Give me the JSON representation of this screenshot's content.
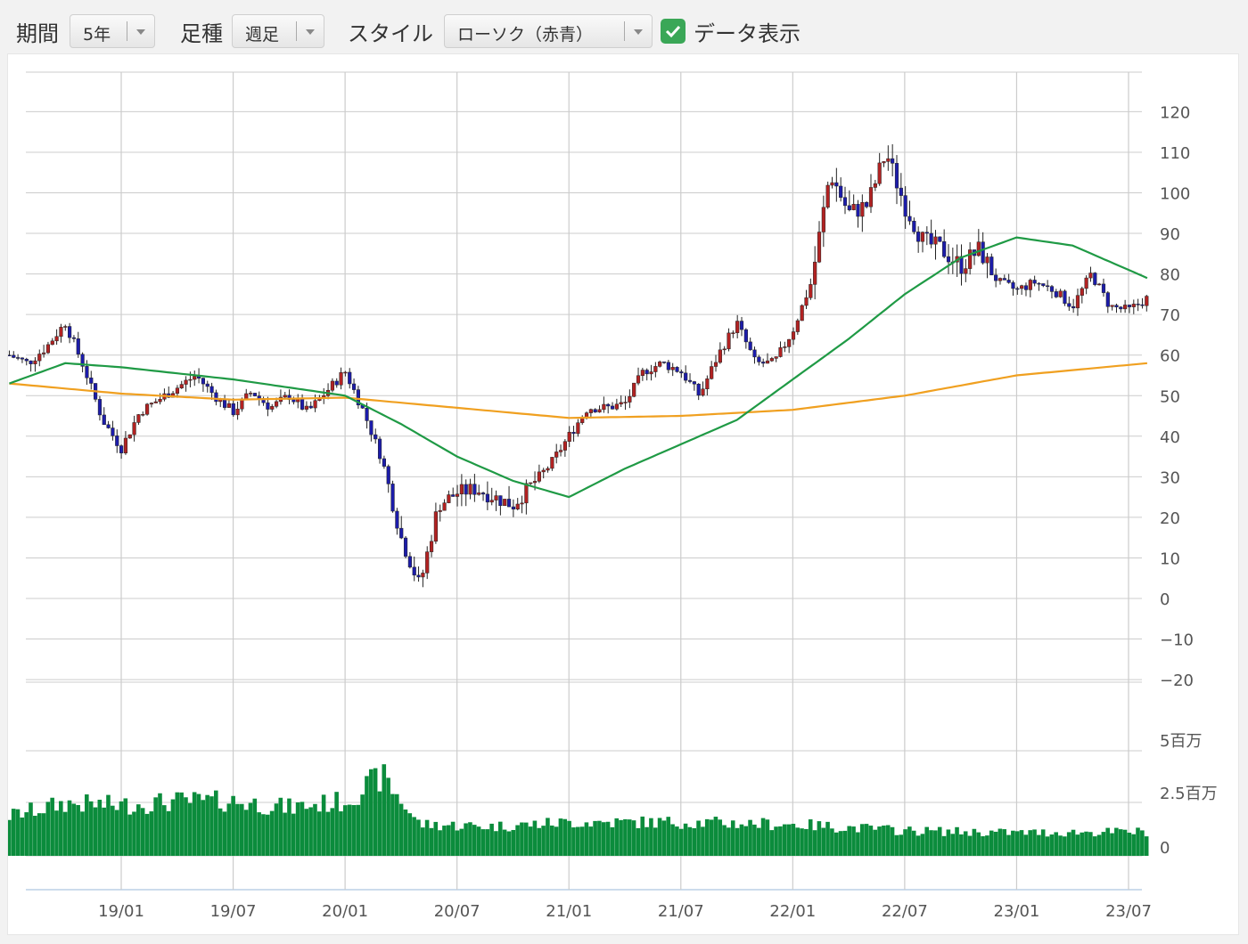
{
  "toolbar": {
    "period_label": "期間",
    "period_value": "5年",
    "interval_label": "足種",
    "interval_value": "週足",
    "style_label": "スタイル",
    "style_value": "ローソク（赤青）",
    "show_data_label": "データ表示",
    "show_data_checked": true,
    "checkbox_color": "#3aa757"
  },
  "chart_data": {
    "type": "candlestick",
    "price_axis": {
      "ticks": [
        "120",
        "110",
        "100",
        "90",
        "80",
        "70",
        "60",
        "50",
        "40",
        "30",
        "20",
        "10",
        "0",
        "−10",
        "−20"
      ],
      "ylim": [
        -20,
        120
      ]
    },
    "volume_axis": {
      "ticks": [
        "5百万",
        "2.5百万",
        "0"
      ],
      "ylim": [
        0,
        5000000
      ]
    },
    "x_axis": {
      "ticks": [
        "19/01",
        "19/07",
        "20/01",
        "20/07",
        "21/01",
        "21/07",
        "22/01",
        "22/07",
        "23/01",
        "23/07"
      ]
    },
    "colors": {
      "up_candle": "#b22222",
      "down_candle": "#1c1caa",
      "ma_short": "#1f9a45",
      "ma_long": "#f0a020",
      "volume": "#0b8c3c",
      "grid": "#cccccc"
    },
    "price_path": [
      [
        "18/07",
        60
      ],
      [
        "18/08",
        58
      ],
      [
        "18/09",
        62
      ],
      [
        "18/10",
        68
      ],
      [
        "18/11",
        57
      ],
      [
        "18/12",
        44
      ],
      [
        "19/01",
        37
      ],
      [
        "19/02",
        46
      ],
      [
        "19/03",
        49
      ],
      [
        "19/04",
        52
      ],
      [
        "19/05",
        55
      ],
      [
        "19/06",
        50
      ],
      [
        "19/07",
        46
      ],
      [
        "19/08",
        51
      ],
      [
        "19/09",
        47
      ],
      [
        "19/10",
        50
      ],
      [
        "19/11",
        46
      ],
      [
        "19/12",
        51
      ],
      [
        "20/01",
        56
      ],
      [
        "20/02",
        46
      ],
      [
        "20/03",
        34
      ],
      [
        "20/04",
        15
      ],
      [
        "20/05",
        3
      ],
      [
        "20/06",
        23
      ],
      [
        "20/07",
        26
      ],
      [
        "20/08",
        27
      ],
      [
        "20/09",
        25
      ],
      [
        "20/10",
        23
      ],
      [
        "20/11",
        28
      ],
      [
        "20/12",
        33
      ],
      [
        "21/01",
        40
      ],
      [
        "21/02",
        47
      ],
      [
        "21/03",
        47
      ],
      [
        "21/04",
        48
      ],
      [
        "21/05",
        56
      ],
      [
        "21/06",
        58
      ],
      [
        "21/07",
        56
      ],
      [
        "21/08",
        50
      ],
      [
        "21/09",
        60
      ],
      [
        "21/10",
        68
      ],
      [
        "21/11",
        58
      ],
      [
        "21/12",
        58
      ],
      [
        "22/01",
        66
      ],
      [
        "22/02",
        78
      ],
      [
        "22/03",
        105
      ],
      [
        "22/04",
        95
      ],
      [
        "22/05",
        97
      ],
      [
        "22/06",
        110
      ],
      [
        "22/07",
        97
      ],
      [
        "22/08",
        88
      ],
      [
        "22/09",
        86
      ],
      [
        "22/10",
        82
      ],
      [
        "22/11",
        86
      ],
      [
        "22/12",
        78
      ],
      [
        "23/01",
        76
      ],
      [
        "23/02",
        78
      ],
      [
        "23/03",
        76
      ],
      [
        "23/04",
        72
      ],
      [
        "23/05",
        80
      ],
      [
        "23/06",
        72
      ],
      [
        "23/07",
        71
      ],
      [
        "23/08",
        74
      ]
    ],
    "ma_short_path": [
      [
        "18/07",
        53
      ],
      [
        "18/10",
        58
      ],
      [
        "19/01",
        57
      ],
      [
        "19/07",
        54
      ],
      [
        "20/01",
        50
      ],
      [
        "20/04",
        43
      ],
      [
        "20/07",
        35
      ],
      [
        "20/10",
        29
      ],
      [
        "21/01",
        25
      ],
      [
        "21/04",
        32
      ],
      [
        "21/07",
        38
      ],
      [
        "21/10",
        44
      ],
      [
        "22/01",
        54
      ],
      [
        "22/04",
        64
      ],
      [
        "22/07",
        75
      ],
      [
        "22/10",
        84
      ],
      [
        "23/01",
        89
      ],
      [
        "23/04",
        87
      ],
      [
        "23/08",
        79
      ]
    ],
    "ma_long_path": [
      [
        "18/07",
        53
      ],
      [
        "19/01",
        50.5
      ],
      [
        "19/07",
        49
      ],
      [
        "20/01",
        49.5
      ],
      [
        "20/07",
        47
      ],
      [
        "21/01",
        44.5
      ],
      [
        "21/07",
        45
      ],
      [
        "22/01",
        46.5
      ],
      [
        "22/07",
        50
      ],
      [
        "23/01",
        55
      ],
      [
        "23/08",
        58
      ]
    ],
    "volume_path": [
      [
        "18/07",
        1.9
      ],
      [
        "18/10",
        2.5
      ],
      [
        "19/01",
        2.4
      ],
      [
        "19/04",
        2.6
      ],
      [
        "19/07",
        2.6
      ],
      [
        "19/10",
        2.3
      ],
      [
        "20/01",
        2.6
      ],
      [
        "20/03",
        3.8
      ],
      [
        "20/05",
        1.5
      ],
      [
        "20/09",
        1.4
      ],
      [
        "21/01",
        1.6
      ],
      [
        "21/07",
        1.6
      ],
      [
        "22/01",
        1.5
      ],
      [
        "22/07",
        1.2
      ],
      [
        "23/01",
        1.1
      ],
      [
        "23/08",
        1.15
      ]
    ]
  }
}
